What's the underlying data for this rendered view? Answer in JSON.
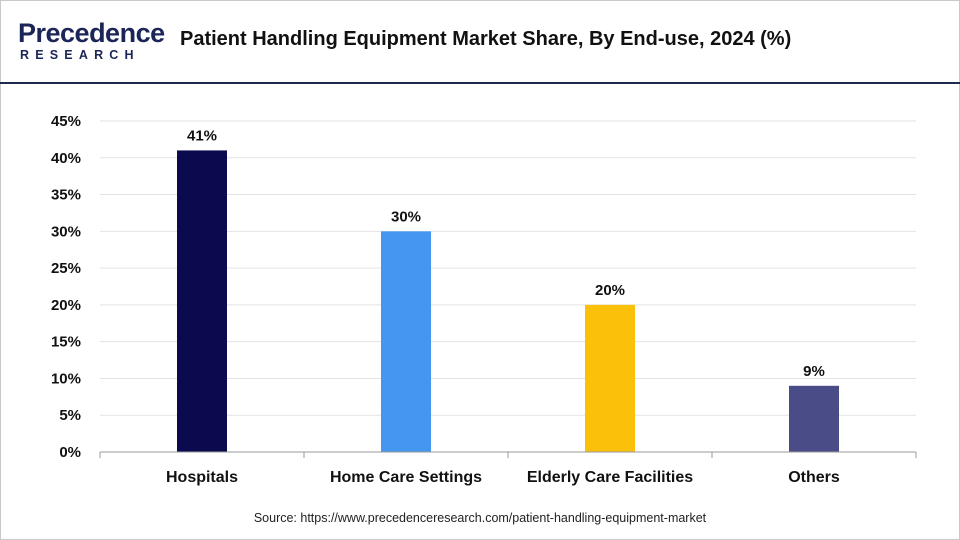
{
  "header": {
    "logo_text": "Precedence",
    "logo_sub": "RESEARCH",
    "title": "Patient Handling Equipment Market Share, By End-use, 2024 (%)"
  },
  "source": "Source: https://www.precedenceresearch.com/patient-handling-equipment-market",
  "chart_data": {
    "type": "bar",
    "title": "Patient Handling Equipment Market Share, By End-use, 2024 (%)",
    "xlabel": "",
    "ylabel": "",
    "categories": [
      "Hospitals",
      "Home Care Settings",
      "Elderly Care Facilities",
      "Others"
    ],
    "values": [
      41,
      30,
      20,
      9
    ],
    "data_labels": [
      "41%",
      "30%",
      "20%",
      "9%"
    ],
    "colors": [
      "#0b0a4e",
      "#4596ee",
      "#fbc00a",
      "#4a4c88"
    ],
    "ylim": [
      0,
      45
    ],
    "yticks": [
      0,
      5,
      10,
      15,
      20,
      25,
      30,
      35,
      40,
      45
    ],
    "ytick_labels": [
      "0%",
      "5%",
      "10%",
      "15%",
      "20%",
      "25%",
      "30%",
      "35%",
      "40%",
      "45%"
    ],
    "grid": true,
    "legend": "none"
  }
}
